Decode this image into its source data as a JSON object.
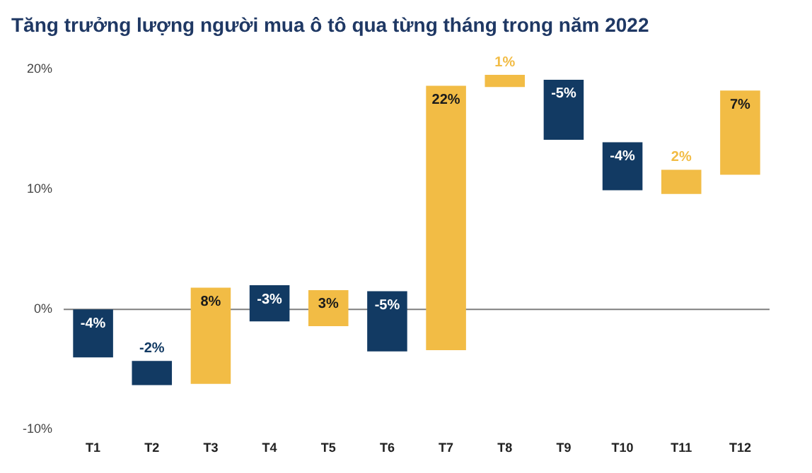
{
  "chart_data": {
    "type": "bar",
    "title": "Tăng trưởng lượng người mua ô tô qua từng tháng trong năm 2022",
    "categories": [
      "T1",
      "T2",
      "T3",
      "T4",
      "T5",
      "T6",
      "T7",
      "T8",
      "T9",
      "T10",
      "T11",
      "T12"
    ],
    "values": [
      -4,
      -2,
      8,
      -3,
      3,
      -5,
      22,
      1,
      -5,
      -4,
      2,
      7
    ],
    "base": [
      0,
      -4.3,
      -6.2,
      2,
      -1.4,
      1.5,
      -3.4,
      18.5,
      19.1,
      13.9,
      9.6,
      11.2
    ],
    "colors": [
      "#123a63",
      "#123a63",
      "#f2bc45",
      "#123a63",
      "#f2bc45",
      "#123a63",
      "#f2bc45",
      "#f2bc45",
      "#123a63",
      "#123a63",
      "#f2bc45",
      "#f2bc45"
    ],
    "value_labels": [
      "-4%",
      "-2%",
      "8%",
      "-3%",
      "3%",
      "-5%",
      "22%",
      "1%",
      "-5%",
      "-4%",
      "2%",
      "7%"
    ],
    "ylim": [
      -10,
      20
    ],
    "yticks": [
      {
        "value": -10,
        "label": "-10%"
      },
      {
        "value": 0,
        "label": "0%"
      },
      {
        "value": 10,
        "label": "10%"
      },
      {
        "value": 20,
        "label": "20%"
      }
    ],
    "ref_lines": [
      {
        "axis": "y",
        "value": 0,
        "color": "#7f7f7f"
      }
    ],
    "grid": false,
    "legend": false
  }
}
